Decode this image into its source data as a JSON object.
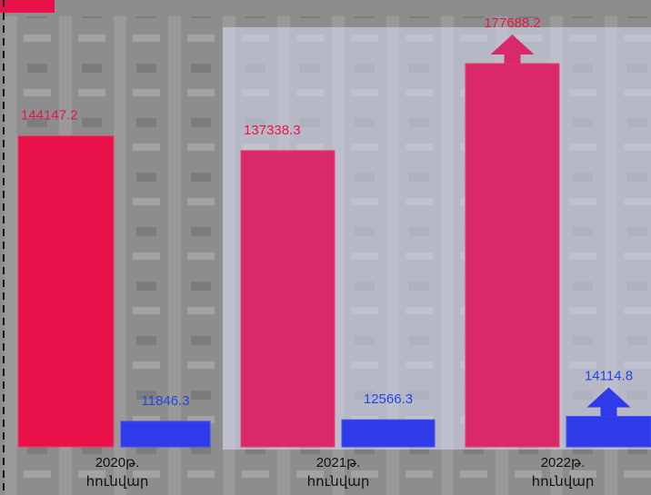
{
  "chart_data": {
    "type": "bar",
    "categories": [
      [
        "2020թ.",
        "հունվար"
      ],
      [
        "2021թ.",
        "հունվար"
      ],
      [
        "2022թ.",
        "հունվար"
      ]
    ],
    "series": [
      {
        "color": "#d9296a",
        "colors": [
          "#e8114a",
          "#d9296a",
          "#d9296a"
        ],
        "label_color": "#e8174a",
        "values": [
          144147.2,
          137338.3,
          177688.2
        ]
      },
      {
        "color": "#2f3be8",
        "label_color": "#2247e0",
        "values": [
          11846.3,
          12566.3,
          14114.8
        ]
      }
    ]
  }
}
